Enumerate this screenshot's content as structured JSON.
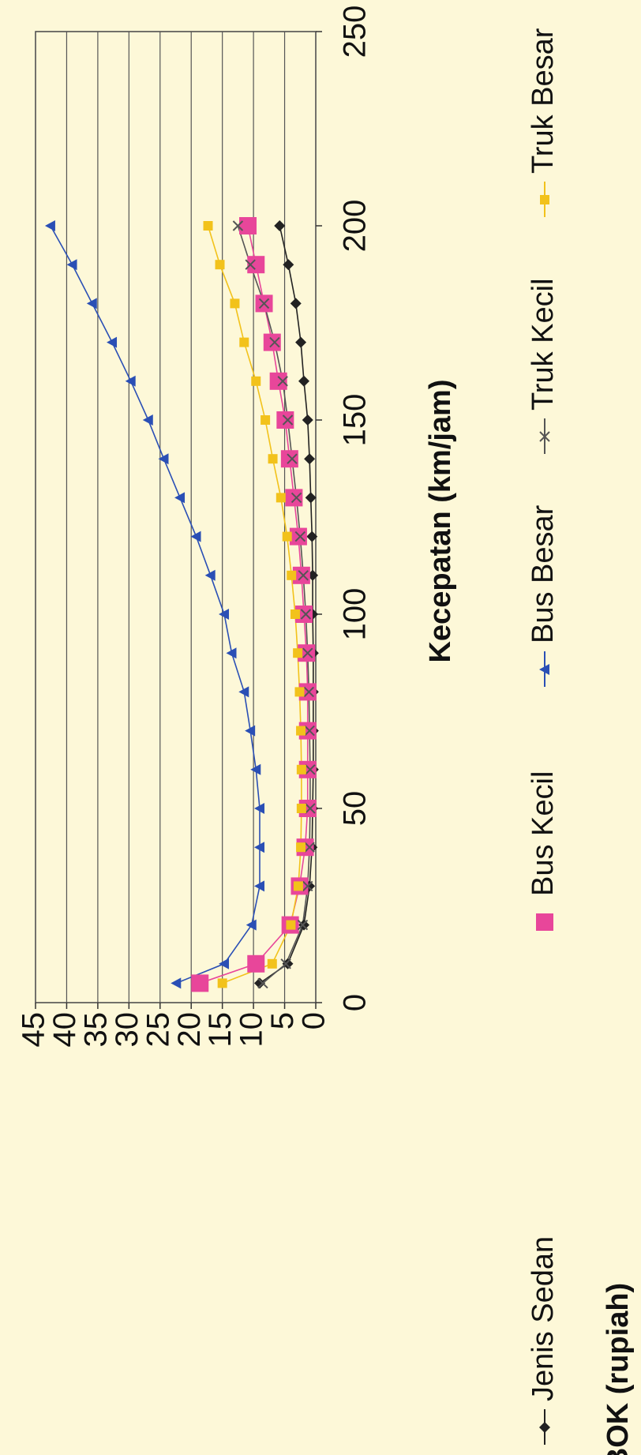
{
  "chart_data": {
    "type": "line",
    "x_label": "Kecepatan (km/jam)",
    "y_label": "BOK (rupiah)",
    "x": [
      5,
      10,
      20,
      30,
      40,
      50,
      60,
      70,
      80,
      90,
      100,
      110,
      120,
      130,
      140,
      150,
      160,
      170,
      180,
      190,
      200
    ],
    "series": [
      {
        "name": "Jenis Sedan",
        "color": "#222222",
        "values": [
          9,
          4.5,
          1.9,
          1,
          0.6,
          0.5,
          0.4,
          0.4,
          0.4,
          0.4,
          0.5,
          0.5,
          0.6,
          0.8,
          1,
          1.3,
          1.9,
          2.4,
          3.2,
          4.4,
          5.8
        ]
      },
      {
        "name": "Bus Kecil",
        "color": "#e8469a",
        "values": [
          18.6,
          9.6,
          4.1,
          2.6,
          1.7,
          1.3,
          1.3,
          1.3,
          1.3,
          1.5,
          1.9,
          2.3,
          2.8,
          3.5,
          4.2,
          4.9,
          6,
          7,
          8.3,
          9.6,
          10.9
        ]
      },
      {
        "name": "Bus Besar",
        "color": "#2a4fb5",
        "values": [
          22.4,
          14.7,
          10.3,
          9,
          9,
          9,
          9.6,
          10.5,
          11.5,
          13.5,
          14.7,
          16.9,
          19.2,
          21.8,
          24.4,
          26.9,
          29.7,
          32.7,
          35.9,
          39.1,
          42.6
        ]
      },
      {
        "name": "Truk Kecil",
        "color": "#555555",
        "values": [
          8.5,
          4.8,
          2.1,
          1.3,
          1,
          0.9,
          0.9,
          1,
          1.1,
          1.3,
          1.6,
          2,
          2.5,
          3.1,
          3.8,
          4.5,
          5.3,
          6.6,
          8.3,
          10.5,
          12.5
        ]
      },
      {
        "name": "Truk Besar",
        "color": "#f2c21b",
        "values": [
          15,
          7,
          4,
          2.8,
          2.4,
          2.3,
          2.3,
          2.4,
          2.6,
          2.9,
          3.3,
          3.9,
          4.6,
          5.6,
          6.9,
          8.1,
          9.6,
          11.5,
          13,
          15.4,
          17.3
        ]
      }
    ],
    "xlim": [
      0,
      250
    ],
    "xticks": [
      0,
      50,
      100,
      150,
      200,
      250
    ],
    "ylim": [
      0,
      45
    ],
    "yticks": [
      0,
      5,
      10,
      15,
      20,
      25,
      30,
      35,
      40,
      45
    ],
    "grid": true,
    "legend": "bottom"
  }
}
